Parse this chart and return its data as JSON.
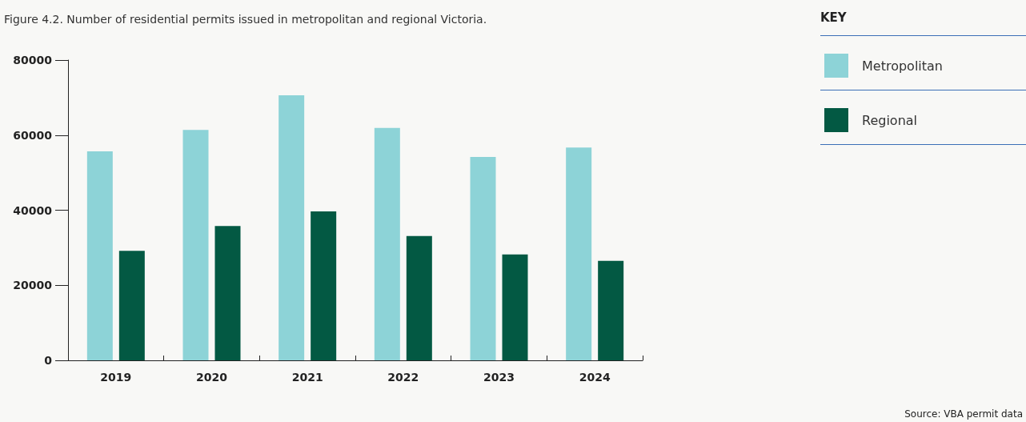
{
  "chart_data": {
    "type": "bar",
    "title": "Figure 4.2. Number of residential permits issued in metropolitan and regional Victoria.",
    "categories": [
      "2019",
      "2020",
      "2021",
      "2022",
      "2023",
      "2024"
    ],
    "series": [
      {
        "name": "Metropolitan",
        "color": "#8dd3d7",
        "values": [
          55700,
          61400,
          70600,
          61900,
          54200,
          56700
        ]
      },
      {
        "name": "Regional",
        "color": "#035943",
        "values": [
          29200,
          35800,
          39700,
          33100,
          28200,
          26500
        ]
      }
    ],
    "ylim": [
      0,
      80000
    ],
    "yticks": [
      0,
      20000,
      40000,
      60000,
      80000
    ],
    "grid": false,
    "legend": "right",
    "legend_title": "KEY",
    "annotations": [
      "Source: VBA permit data"
    ]
  }
}
